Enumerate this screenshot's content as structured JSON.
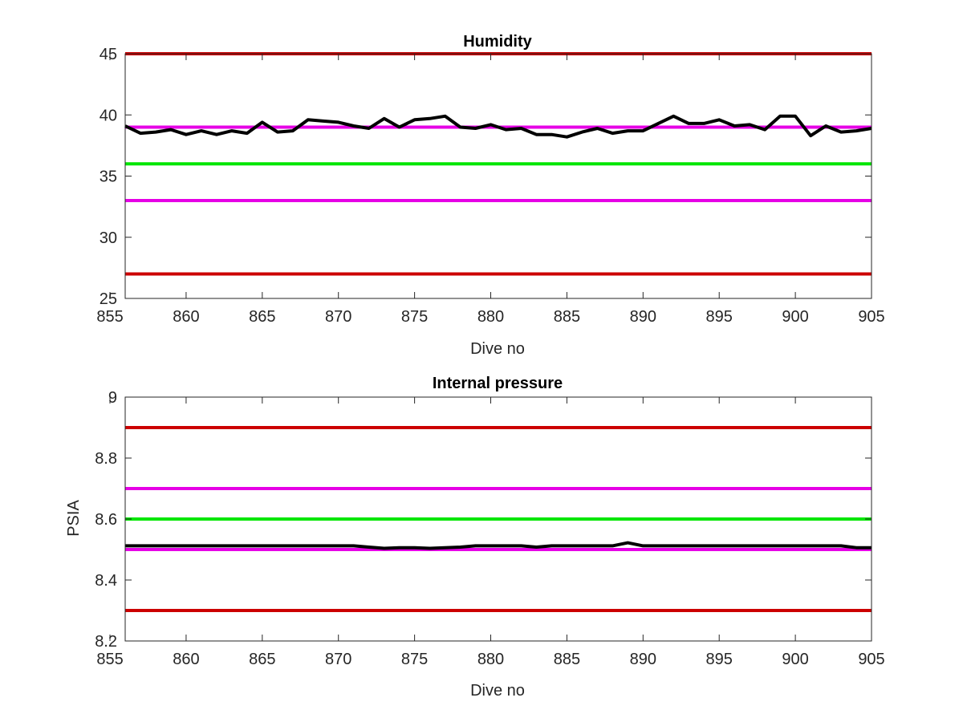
{
  "chart_data": [
    {
      "type": "line",
      "title": "Humidity",
      "xlabel": "Dive no",
      "ylabel": "",
      "xlim": [
        856,
        905
      ],
      "ylim": [
        25,
        45
      ],
      "xticks": [
        855,
        860,
        865,
        870,
        875,
        880,
        885,
        890,
        895,
        900,
        905
      ],
      "yticks": [
        25,
        30,
        35,
        40,
        45
      ],
      "grid": false,
      "reference_lines": [
        {
          "y": 45,
          "color": "#cc0000"
        },
        {
          "y": 39,
          "color": "#e600e6"
        },
        {
          "y": 36,
          "color": "#00e600"
        },
        {
          "y": 33,
          "color": "#e600e6"
        },
        {
          "y": 27,
          "color": "#cc0000"
        }
      ],
      "series": [
        {
          "color": "#000000",
          "x": [
            856,
            857,
            858,
            859,
            860,
            861,
            862,
            863,
            864,
            865,
            866,
            867,
            868,
            869,
            870,
            871,
            872,
            873,
            874,
            875,
            876,
            877,
            878,
            879,
            880,
            881,
            882,
            883,
            884,
            885,
            886,
            887,
            888,
            889,
            890,
            891,
            892,
            893,
            894,
            895,
            896,
            897,
            898,
            899,
            900,
            901,
            902,
            903,
            904,
            905
          ],
          "values": [
            39.1,
            38.5,
            38.6,
            38.8,
            38.4,
            38.7,
            38.4,
            38.7,
            38.5,
            39.4,
            38.6,
            38.7,
            39.6,
            39.5,
            39.4,
            39.1,
            38.9,
            39.7,
            39.0,
            39.6,
            39.7,
            39.9,
            39.0,
            38.9,
            39.2,
            38.8,
            38.9,
            38.4,
            38.4,
            38.2,
            38.6,
            38.9,
            38.5,
            38.7,
            38.7,
            39.3,
            39.9,
            39.3,
            39.3,
            39.6,
            39.1,
            39.2,
            38.8,
            39.9,
            39.9,
            38.3,
            39.1,
            38.6,
            38.7,
            38.9
          ]
        }
      ]
    },
    {
      "type": "line",
      "title": "Internal pressure",
      "xlabel": "Dive no",
      "ylabel": "PSIA",
      "xlim": [
        856,
        905
      ],
      "ylim": [
        8.2,
        9
      ],
      "xticks": [
        855,
        860,
        865,
        870,
        875,
        880,
        885,
        890,
        895,
        900,
        905
      ],
      "yticks": [
        8.2,
        8.4,
        8.6,
        8.8,
        9
      ],
      "grid": false,
      "reference_lines": [
        {
          "y": 8.9,
          "color": "#cc0000"
        },
        {
          "y": 8.7,
          "color": "#e600e6"
        },
        {
          "y": 8.6,
          "color": "#00e600"
        },
        {
          "y": 8.5,
          "color": "#e600e6"
        },
        {
          "y": 8.3,
          "color": "#cc0000"
        }
      ],
      "series": [
        {
          "color": "#000000",
          "x": [
            856,
            858,
            860,
            862,
            864,
            866,
            868,
            870,
            871,
            872,
            873,
            874,
            875,
            876,
            877,
            878,
            879,
            880,
            881,
            882,
            883,
            884,
            885,
            886,
            887,
            888,
            889,
            890,
            891,
            892,
            894,
            896,
            898,
            900,
            902,
            903,
            904,
            905
          ],
          "values": [
            8.512,
            8.512,
            8.512,
            8.512,
            8.512,
            8.512,
            8.512,
            8.512,
            8.512,
            8.508,
            8.504,
            8.506,
            8.506,
            8.504,
            8.506,
            8.508,
            8.512,
            8.512,
            8.512,
            8.512,
            8.508,
            8.512,
            8.512,
            8.512,
            8.512,
            8.512,
            8.522,
            8.512,
            8.512,
            8.512,
            8.512,
            8.512,
            8.512,
            8.512,
            8.512,
            8.512,
            8.506,
            8.506
          ]
        }
      ]
    }
  ]
}
